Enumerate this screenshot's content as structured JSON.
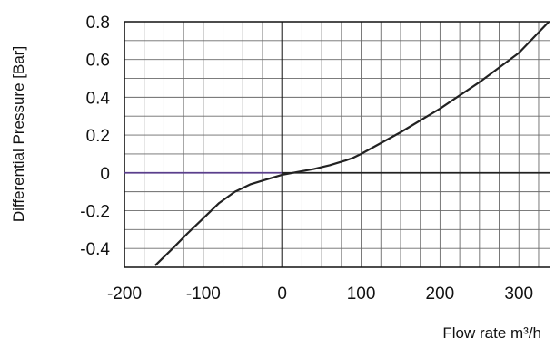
{
  "chart_data": {
    "type": "line",
    "title": "",
    "xlabel": "Flow rate m³/h",
    "ylabel": "Differential Pressure [Bar]",
    "xlim": [
      -200,
      340
    ],
    "ylim": [
      -0.5,
      0.8
    ],
    "x_ticks": [
      -200,
      -100,
      0,
      100,
      200,
      300
    ],
    "x_tick_labels": [
      "-200",
      "-100",
      "0",
      "100",
      "200",
      "300"
    ],
    "y_ticks": [
      0.8,
      0.6,
      0.4,
      0.2,
      0,
      -0.2,
      -0.4
    ],
    "y_tick_labels": [
      "0.8",
      "0.6",
      "0.4",
      "0.2",
      "0",
      "-0.2",
      "-0.4"
    ],
    "grid": true,
    "series": [
      {
        "color": "#222222",
        "x": [
          -161,
          -140,
          -120,
          -100,
          -80,
          -60,
          -40,
          -20,
          0,
          20,
          40,
          60,
          80,
          90,
          100,
          150,
          200,
          250,
          300,
          338
        ],
        "y": [
          -0.49,
          -0.405,
          -0.32,
          -0.24,
          -0.16,
          -0.1,
          -0.06,
          -0.035,
          -0.01,
          0.005,
          0.02,
          0.04,
          0.065,
          0.08,
          0.1,
          0.215,
          0.34,
          0.48,
          0.635,
          0.8
        ]
      }
    ],
    "zero_line_color": "#5a3f8c"
  }
}
